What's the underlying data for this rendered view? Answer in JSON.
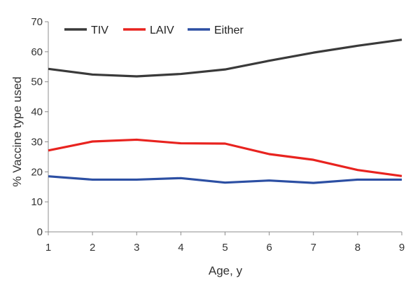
{
  "chart_data": {
    "type": "line",
    "xlabel": "Age, y",
    "ylabel": "% Vaccine type used",
    "x": [
      1,
      2,
      3,
      4,
      5,
      6,
      7,
      8,
      9
    ],
    "xlim": [
      1,
      9
    ],
    "ylim": [
      0,
      70
    ],
    "yticks": [
      0,
      10,
      20,
      30,
      40,
      50,
      60,
      70
    ],
    "grid": false,
    "legend": "top-left",
    "series": [
      {
        "name": "TIV",
        "color": "#3a3a3a",
        "values": [
          54.3,
          52.4,
          51.8,
          52.6,
          54.1,
          57.0,
          59.7,
          62.0,
          64.0
        ]
      },
      {
        "name": "LAIV",
        "color": "#e8231f",
        "values": [
          27.1,
          30.1,
          30.7,
          29.5,
          29.4,
          25.9,
          24.0,
          20.6,
          18.6
        ]
      },
      {
        "name": "Either",
        "color": "#2c4fa3",
        "values": [
          18.5,
          17.4,
          17.4,
          17.9,
          16.4,
          17.1,
          16.3,
          17.4,
          17.4
        ]
      }
    ]
  }
}
